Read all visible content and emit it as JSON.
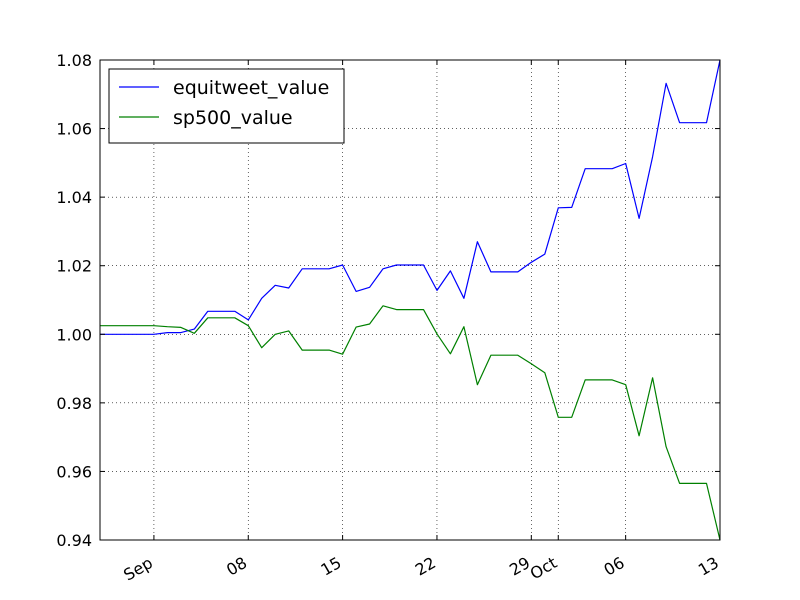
{
  "chart_data": {
    "type": "line",
    "title": "",
    "xlabel": "",
    "ylabel": "",
    "x": [
      "2014-08-28",
      "2014-08-29",
      "2014-08-30",
      "2014-08-31",
      "2014-09-01",
      "2014-09-02",
      "2014-09-03",
      "2014-09-04",
      "2014-09-05",
      "2014-09-06",
      "2014-09-07",
      "2014-09-08",
      "2014-09-09",
      "2014-09-10",
      "2014-09-11",
      "2014-09-12",
      "2014-09-13",
      "2014-09-14",
      "2014-09-15",
      "2014-09-16",
      "2014-09-17",
      "2014-09-18",
      "2014-09-19",
      "2014-09-20",
      "2014-09-21",
      "2014-09-22",
      "2014-09-23",
      "2014-09-24",
      "2014-09-25",
      "2014-09-26",
      "2014-09-27",
      "2014-09-28",
      "2014-09-29",
      "2014-09-30",
      "2014-10-01",
      "2014-10-02",
      "2014-10-03",
      "2014-10-04",
      "2014-10-05",
      "2014-10-06",
      "2014-10-07",
      "2014-10-08",
      "2014-10-09",
      "2014-10-10",
      "2014-10-11",
      "2014-10-12",
      "2014-10-13"
    ],
    "series": [
      {
        "name": "equitweet_value",
        "color": "#0000ff",
        "values": [
          1.0,
          1.0,
          1.0,
          1.0,
          1.0,
          1.0005,
          1.0005,
          1.0015,
          1.0067,
          1.0067,
          1.0067,
          1.0042,
          1.0105,
          1.0143,
          1.0135,
          1.0191,
          1.0191,
          1.0191,
          1.0202,
          1.0125,
          1.0137,
          1.0191,
          1.0202,
          1.0202,
          1.0202,
          1.0128,
          1.0185,
          1.0105,
          1.027,
          1.0182,
          1.0182,
          1.0182,
          1.021,
          1.0234,
          1.0369,
          1.037,
          1.0483,
          1.0483,
          1.0483,
          1.0498,
          1.0338,
          1.0518,
          1.0732,
          1.0617,
          1.0617,
          1.0617,
          1.08
        ]
      },
      {
        "name": "sp500_value",
        "color": "#008000",
        "values": [
          1.0025,
          1.0025,
          1.0025,
          1.0025,
          1.0025,
          1.0022,
          1.002,
          1.0003,
          1.0048,
          1.0048,
          1.0048,
          1.0025,
          0.9961,
          1.0,
          1.001,
          0.9954,
          0.9954,
          0.9954,
          0.9942,
          1.0021,
          1.003,
          1.0083,
          1.0072,
          1.0072,
          1.0072,
          1.0001,
          0.9943,
          1.0022,
          0.9853,
          0.9939,
          0.9939,
          0.9939,
          0.9914,
          0.9888,
          0.9758,
          0.9758,
          0.9867,
          0.9867,
          0.9867,
          0.9853,
          0.9704,
          0.9873,
          0.9672,
          0.9565,
          0.9565,
          0.9565,
          0.94
        ]
      }
    ],
    "ylim": [
      0.94,
      1.08
    ],
    "xlim": [
      "2014-08-28",
      "2014-10-13"
    ],
    "y_ticks": [
      "0.94",
      "0.96",
      "0.98",
      "1.00",
      "1.02",
      "1.04",
      "1.06",
      "1.08"
    ],
    "x_ticks": [
      {
        "date": "2014-09-01",
        "label": "Sep"
      },
      {
        "date": "2014-09-08",
        "label": "08"
      },
      {
        "date": "2014-09-15",
        "label": "15"
      },
      {
        "date": "2014-09-22",
        "label": "22"
      },
      {
        "date": "2014-09-29",
        "label": "29"
      },
      {
        "date": "2014-10-01",
        "label": "Oct"
      },
      {
        "date": "2014-10-06",
        "label": "06"
      },
      {
        "date": "2014-10-13",
        "label": "13"
      }
    ],
    "grid": true,
    "legend_position": "top-left"
  }
}
